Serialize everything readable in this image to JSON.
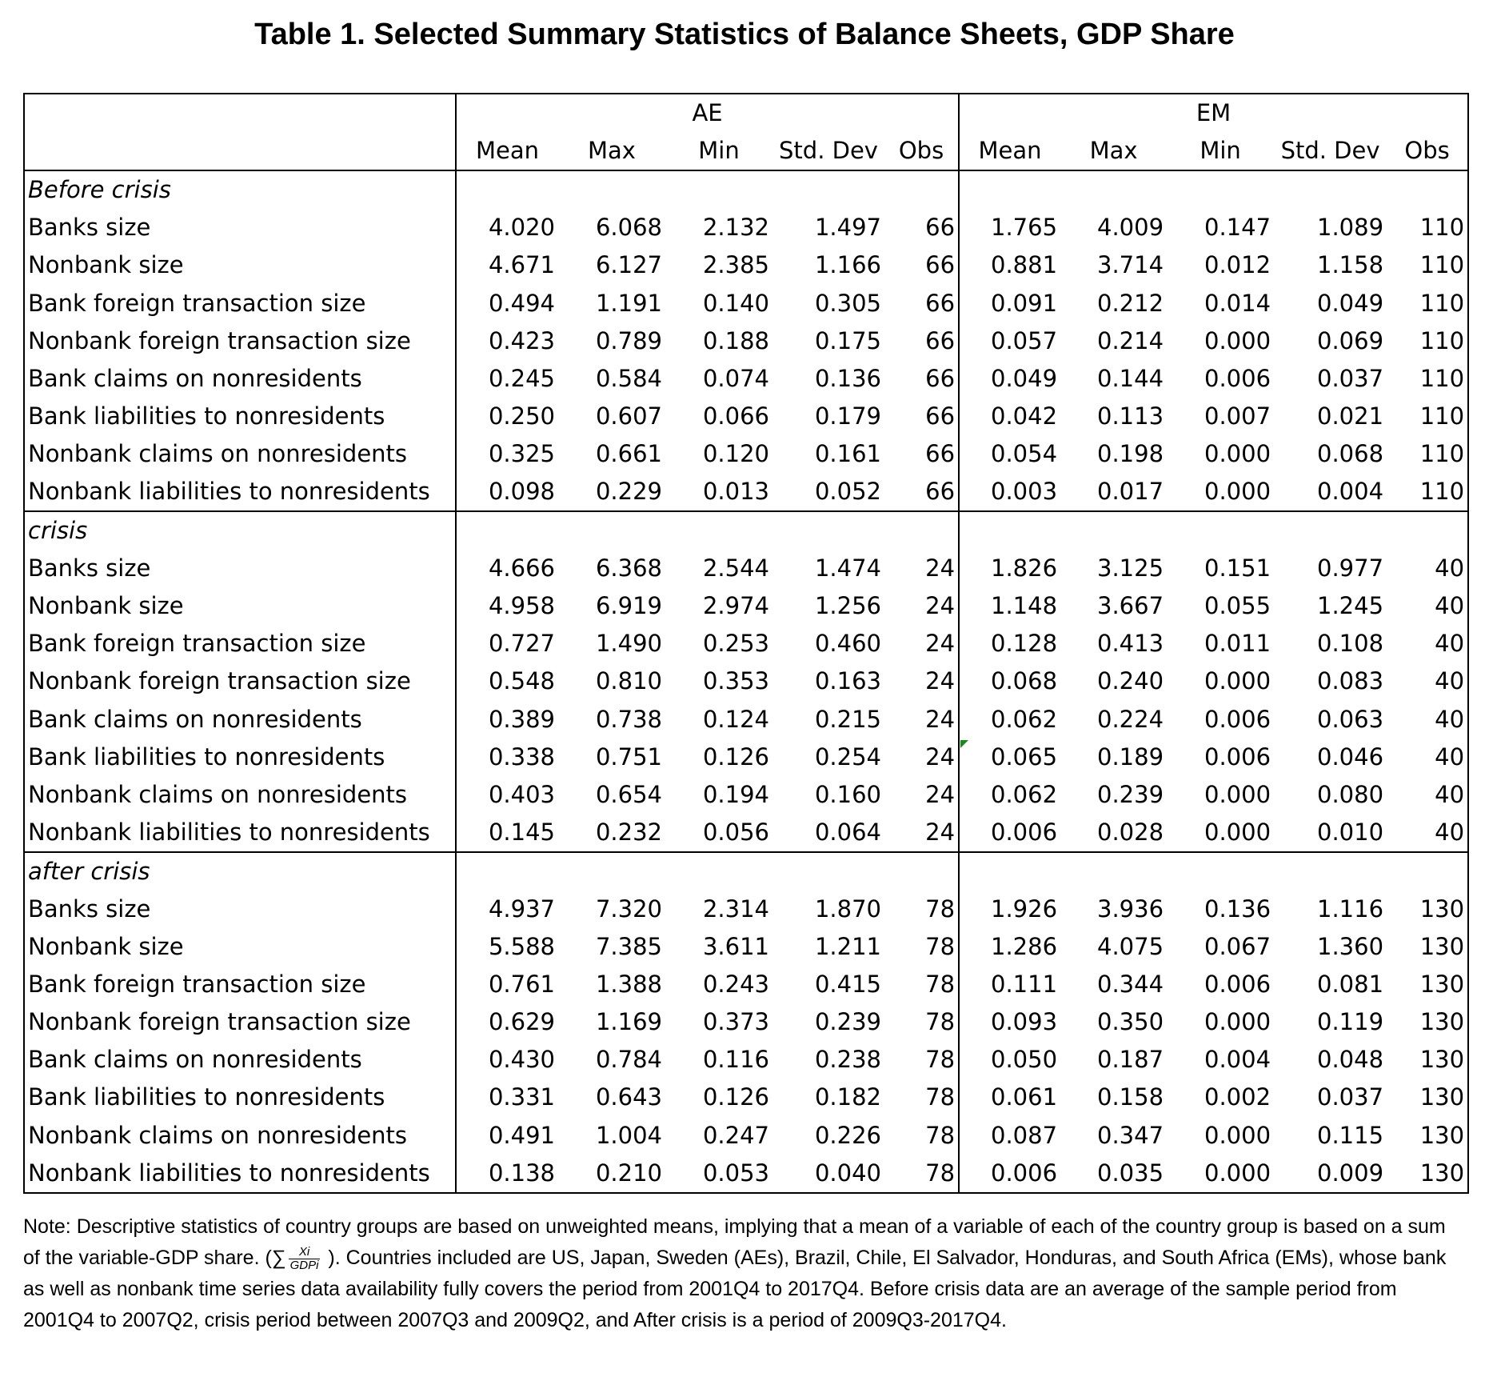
{
  "title": "Table 1. Selected Summary Statistics of Balance Sheets, GDP Share",
  "groups": {
    "ae": "AE",
    "em": "EM"
  },
  "columns": [
    "Mean",
    "Max",
    "Min",
    "Std. Dev",
    "Obs",
    "Mean",
    "Max",
    "Min",
    "Std. Dev",
    "Obs"
  ],
  "sections": [
    {
      "label": "Before crisis",
      "rows": [
        {
          "label": "Banks size",
          "values": [
            "4.020",
            "6.068",
            "2.132",
            "1.497",
            "66",
            "1.765",
            "4.009",
            "0.147",
            "1.089",
            "110"
          ]
        },
        {
          "label": "Nonbank size",
          "values": [
            "4.671",
            "6.127",
            "2.385",
            "1.166",
            "66",
            "0.881",
            "3.714",
            "0.012",
            "1.158",
            "110"
          ]
        },
        {
          "label": "Bank foreign transaction size",
          "values": [
            "0.494",
            "1.191",
            "0.140",
            "0.305",
            "66",
            "0.091",
            "0.212",
            "0.014",
            "0.049",
            "110"
          ]
        },
        {
          "label": "Nonbank foreign transaction size",
          "values": [
            "0.423",
            "0.789",
            "0.188",
            "0.175",
            "66",
            "0.057",
            "0.214",
            "0.000",
            "0.069",
            "110"
          ]
        },
        {
          "label": "Bank claims on nonresidents",
          "values": [
            "0.245",
            "0.584",
            "0.074",
            "0.136",
            "66",
            "0.049",
            "0.144",
            "0.006",
            "0.037",
            "110"
          ]
        },
        {
          "label": "Bank liabilities to nonresidents",
          "values": [
            "0.250",
            "0.607",
            "0.066",
            "0.179",
            "66",
            "0.042",
            "0.113",
            "0.007",
            "0.021",
            "110"
          ]
        },
        {
          "label": "Nonbank claims on nonresidents",
          "values": [
            "0.325",
            "0.661",
            "0.120",
            "0.161",
            "66",
            "0.054",
            "0.198",
            "0.000",
            "0.068",
            "110"
          ]
        },
        {
          "label": "Nonbank liabilities to nonresidents",
          "values": [
            "0.098",
            "0.229",
            "0.013",
            "0.052",
            "66",
            "0.003",
            "0.017",
            "0.000",
            "0.004",
            "110"
          ]
        }
      ]
    },
    {
      "label": "crisis",
      "rows": [
        {
          "label": "Banks size",
          "values": [
            "4.666",
            "6.368",
            "2.544",
            "1.474",
            "24",
            "1.826",
            "3.125",
            "0.151",
            "0.977",
            "40"
          ]
        },
        {
          "label": "Nonbank size",
          "values": [
            "4.958",
            "6.919",
            "2.974",
            "1.256",
            "24",
            "1.148",
            "3.667",
            "0.055",
            "1.245",
            "40"
          ]
        },
        {
          "label": "Bank foreign transaction size",
          "values": [
            "0.727",
            "1.490",
            "0.253",
            "0.460",
            "24",
            "0.128",
            "0.413",
            "0.011",
            "0.108",
            "40"
          ]
        },
        {
          "label": "Nonbank foreign transaction size",
          "values": [
            "0.548",
            "0.810",
            "0.353",
            "0.163",
            "24",
            "0.068",
            "0.240",
            "0.000",
            "0.083",
            "40"
          ]
        },
        {
          "label": "Bank claims on nonresidents",
          "values": [
            "0.389",
            "0.738",
            "0.124",
            "0.215",
            "24",
            "0.062",
            "0.224",
            "0.006",
            "0.063",
            "40"
          ]
        },
        {
          "label": "Bank liabilities to nonresidents",
          "values": [
            "0.338",
            "0.751",
            "0.126",
            "0.254",
            "24",
            "0.065",
            "0.189",
            "0.006",
            "0.046",
            "40"
          ]
        },
        {
          "label": "Nonbank claims on nonresidents",
          "values": [
            "0.403",
            "0.654",
            "0.194",
            "0.160",
            "24",
            "0.062",
            "0.239",
            "0.000",
            "0.080",
            "40"
          ]
        },
        {
          "label": "Nonbank liabilities to nonresidents",
          "values": [
            "0.145",
            "0.232",
            "0.056",
            "0.064",
            "24",
            "0.006",
            "0.028",
            "0.000",
            "0.010",
            "40"
          ]
        }
      ]
    },
    {
      "label": "after crisis",
      "rows": [
        {
          "label": "Banks size",
          "values": [
            "4.937",
            "7.320",
            "2.314",
            "1.870",
            "78",
            "1.926",
            "3.936",
            "0.136",
            "1.116",
            "130"
          ]
        },
        {
          "label": "Nonbank size",
          "values": [
            "5.588",
            "7.385",
            "3.611",
            "1.211",
            "78",
            "1.286",
            "4.075",
            "0.067",
            "1.360",
            "130"
          ]
        },
        {
          "label": "Bank foreign transaction size",
          "values": [
            "0.761",
            "1.388",
            "0.243",
            "0.415",
            "78",
            "0.111",
            "0.344",
            "0.006",
            "0.081",
            "130"
          ]
        },
        {
          "label": "Nonbank foreign transaction size",
          "values": [
            "0.629",
            "1.169",
            "0.373",
            "0.239",
            "78",
            "0.093",
            "0.350",
            "0.000",
            "0.119",
            "130"
          ]
        },
        {
          "label": "Bank claims on nonresidents",
          "values": [
            "0.430",
            "0.784",
            "0.116",
            "0.238",
            "78",
            "0.050",
            "0.187",
            "0.004",
            "0.048",
            "130"
          ]
        },
        {
          "label": "Bank liabilities to nonresidents",
          "values": [
            "0.331",
            "0.643",
            "0.126",
            "0.182",
            "78",
            "0.061",
            "0.158",
            "0.002",
            "0.037",
            "130"
          ]
        },
        {
          "label": "Nonbank claims on nonresidents",
          "values": [
            "0.491",
            "1.004",
            "0.247",
            "0.226",
            "78",
            "0.087",
            "0.347",
            "0.000",
            "0.115",
            "130"
          ]
        },
        {
          "label": "Nonbank liabilities to nonresidents",
          "values": [
            "0.138",
            "0.210",
            "0.053",
            "0.040",
            "78",
            "0.006",
            "0.035",
            "0.000",
            "0.009",
            "130"
          ]
        }
      ]
    }
  ],
  "note": {
    "before_formula": "Note: Descriptive statistics of country groups are based on unweighted means, implying that a mean of a variable of each of the country group is based on a sum of the variable-GDP share. (∑",
    "formula_numerator": "Xi",
    "formula_denominator": "GDPi",
    "after_formula": " ). Countries included are US, Japan, Sweden (AEs), Brazil, Chile, El Salvador, Honduras, and South Africa (EMs), whose bank as well as nonbank time series data availability fully covers the period from 2001Q4 to 2017Q4. Before crisis data are an average of the sample period from 2001Q4 to 2007Q2, crisis period between 2007Q3 and 2009Q2, and After crisis is a period of 2009Q3-2017Q4."
  },
  "marker_color": "#1a8a1a"
}
